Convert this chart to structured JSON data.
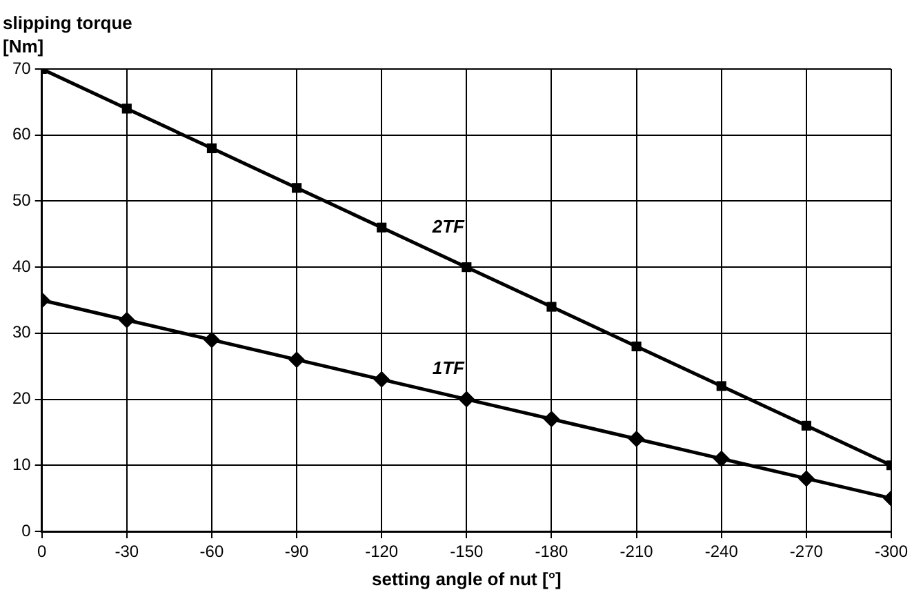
{
  "chart_data": {
    "type": "line",
    "ylabel": "slipping torque\n[Nm]",
    "xlabel": "setting angle of nut [°]",
    "x": [
      0,
      -30,
      -60,
      -90,
      -120,
      -150,
      -180,
      -210,
      -240,
      -270,
      -300
    ],
    "xlim": [
      0,
      -300
    ],
    "xticks": [
      0,
      -30,
      -60,
      -90,
      -120,
      -150,
      -180,
      -210,
      -240,
      -270,
      -300
    ],
    "ylim": [
      0,
      70
    ],
    "yticks": [
      0,
      10,
      20,
      30,
      40,
      50,
      60,
      70
    ],
    "grid": true,
    "legend": false,
    "line_style": "solid",
    "series": [
      {
        "name": "2TF",
        "color": "#000000",
        "marker": "square",
        "values": [
          70,
          64,
          58,
          52,
          46,
          40,
          34,
          28,
          22,
          16,
          10
        ]
      },
      {
        "name": "1TF",
        "color": "#000000",
        "marker": "diamond",
        "values": [
          35,
          32,
          29,
          26,
          23,
          20,
          17,
          14,
          11,
          8,
          5
        ]
      }
    ]
  }
}
